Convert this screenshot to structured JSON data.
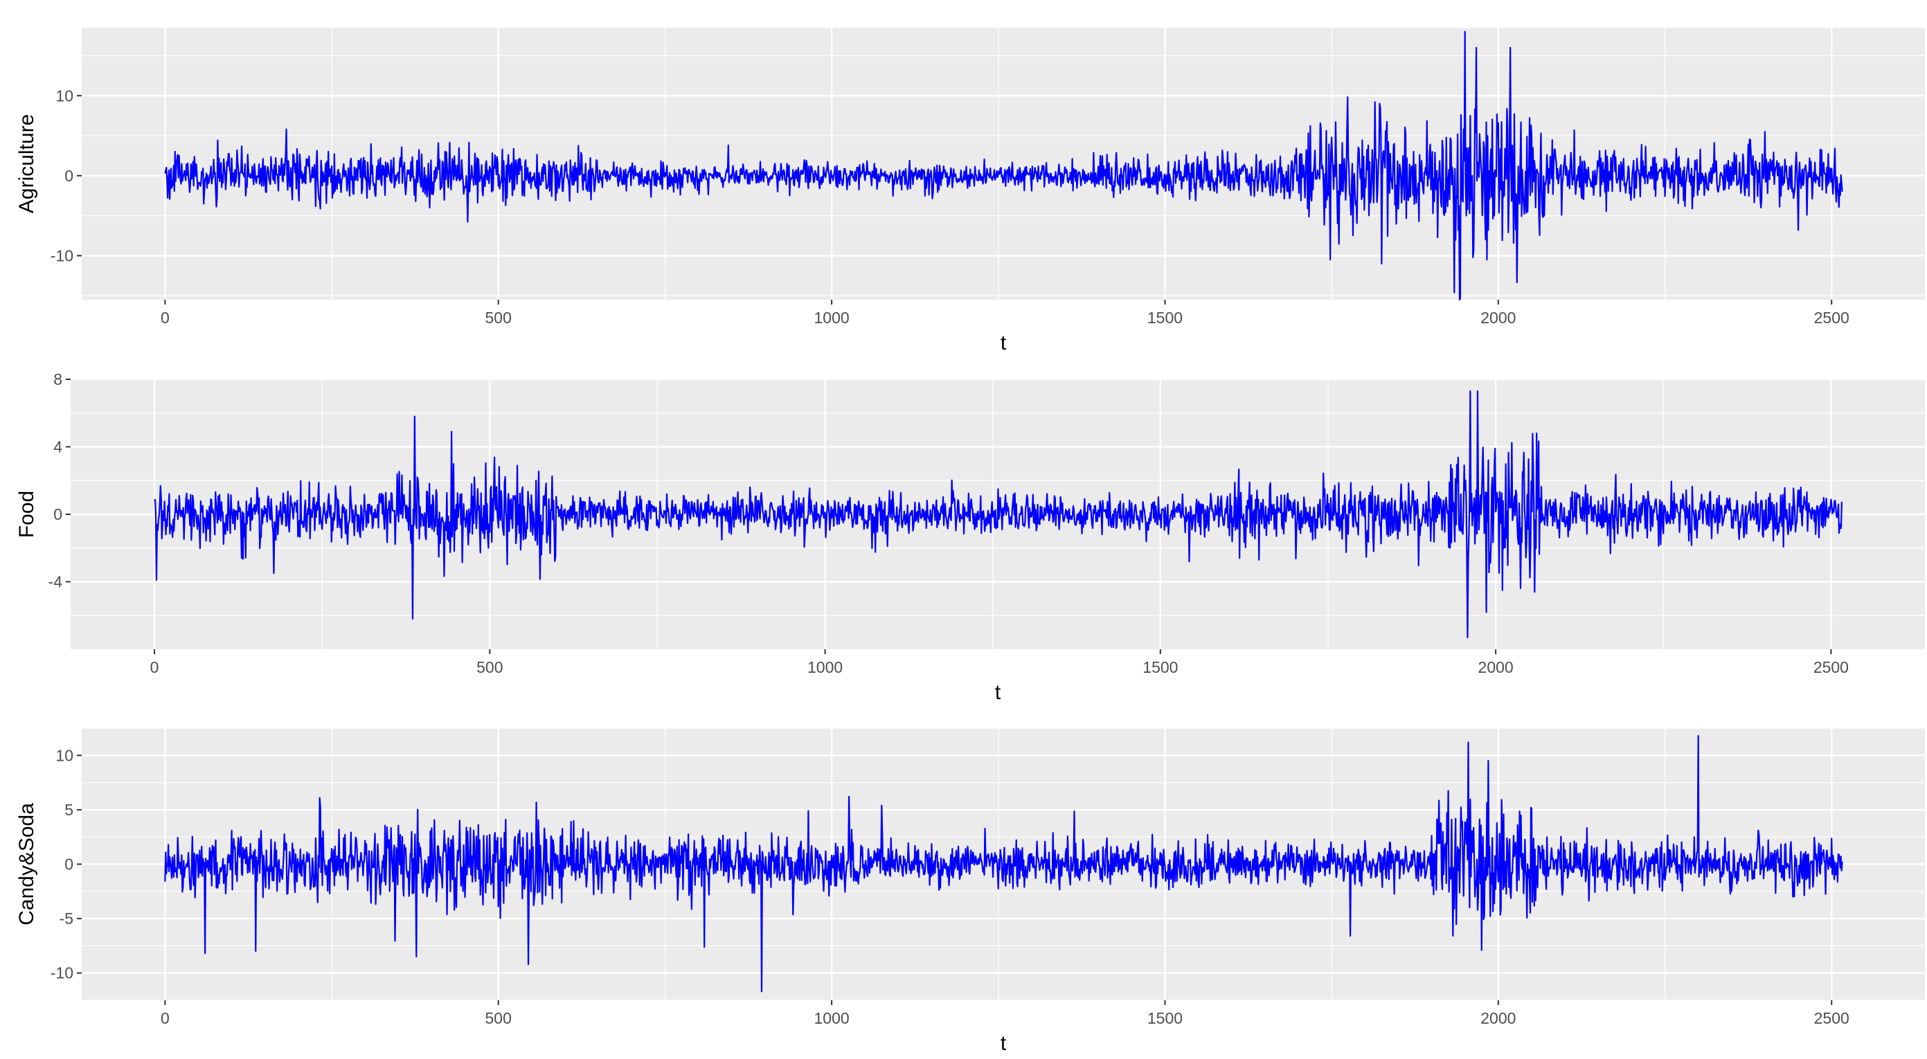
{
  "chart_data": [
    {
      "type": "line",
      "xlabel": "t",
      "ylabel": "Agriculture",
      "x_range": [
        -125,
        2640
      ],
      "ylim": [
        -15.5,
        18.5
      ],
      "x_ticks": [
        0,
        500,
        1000,
        1500,
        2000,
        2500
      ],
      "y_ticks": [
        -10,
        0,
        10
      ],
      "grid": true,
      "color": "#0000ff",
      "n_points": 2517,
      "segments": [
        {
          "start": 0,
          "end": 170,
          "amp": 1.3
        },
        {
          "start": 170,
          "end": 650,
          "amp": 1.5
        },
        {
          "start": 650,
          "end": 1400,
          "amp": 0.8
        },
        {
          "start": 1400,
          "end": 1700,
          "amp": 1.4
        },
        {
          "start": 1700,
          "end": 1930,
          "amp": 3.0
        },
        {
          "start": 1930,
          "end": 2070,
          "amp": 4.5
        },
        {
          "start": 2070,
          "end": 2517,
          "amp": 1.6
        }
      ],
      "spikes": [
        {
          "t": 182,
          "v": 5.8
        },
        {
          "t": 1748,
          "v": -10.5
        },
        {
          "t": 1815,
          "v": 9.2
        },
        {
          "t": 1825,
          "v": -11.0
        },
        {
          "t": 1950,
          "v": 18.0
        },
        {
          "t": 1943,
          "v": -15.3
        },
        {
          "t": 1967,
          "v": 16.0
        },
        {
          "t": 1983,
          "v": -10.5
        },
        {
          "t": 2018,
          "v": 16.0
        },
        {
          "t": 2450,
          "v": -6.8
        },
        {
          "t": 2400,
          "v": 5.5
        }
      ]
    },
    {
      "type": "line",
      "xlabel": "t",
      "ylabel": "Food",
      "x_range": [
        -125,
        2640
      ],
      "ylim": [
        -8,
        8
      ],
      "x_ticks": [
        0,
        500,
        1000,
        1500,
        2000,
        2500
      ],
      "y_ticks": [
        -4,
        0,
        4,
        8
      ],
      "grid": true,
      "color": "#0000ff",
      "n_points": 2517,
      "segments": [
        {
          "start": 0,
          "end": 360,
          "amp": 0.8
        },
        {
          "start": 360,
          "end": 600,
          "amp": 1.2
        },
        {
          "start": 600,
          "end": 1600,
          "amp": 0.55
        },
        {
          "start": 1600,
          "end": 1930,
          "amp": 0.85
        },
        {
          "start": 1930,
          "end": 2070,
          "amp": 1.9
        },
        {
          "start": 2070,
          "end": 2517,
          "amp": 0.7
        }
      ],
      "spikes": [
        {
          "t": 3,
          "v": -3.9
        },
        {
          "t": 178,
          "v": -3.5
        },
        {
          "t": 388,
          "v": 5.8
        },
        {
          "t": 385,
          "v": -6.2
        },
        {
          "t": 443,
          "v": 4.9
        },
        {
          "t": 1543,
          "v": -2.8
        },
        {
          "t": 1962,
          "v": 7.3
        },
        {
          "t": 1958,
          "v": -7.3
        },
        {
          "t": 1973,
          "v": 7.3
        },
        {
          "t": 1986,
          "v": -5.8
        },
        {
          "t": 2061,
          "v": 4.8
        },
        {
          "t": 2010,
          "v": -4.5
        }
      ]
    },
    {
      "type": "line",
      "xlabel": "t",
      "ylabel": "Candy&Soda",
      "x_range": [
        -125,
        2640
      ],
      "ylim": [
        -12.5,
        12.5
      ],
      "x_ticks": [
        0,
        500,
        1000,
        1500,
        2000,
        2500
      ],
      "y_ticks": [
        -10,
        -5,
        0,
        5,
        10
      ],
      "grid": true,
      "color": "#0000ff",
      "n_points": 2517,
      "segments": [
        {
          "start": 0,
          "end": 330,
          "amp": 1.4
        },
        {
          "start": 330,
          "end": 600,
          "amp": 2.0
        },
        {
          "start": 600,
          "end": 1100,
          "amp": 1.2
        },
        {
          "start": 1100,
          "end": 1900,
          "amp": 1.0
        },
        {
          "start": 1900,
          "end": 2060,
          "amp": 2.8
        },
        {
          "start": 2060,
          "end": 2517,
          "amp": 1.1
        }
      ],
      "spikes": [
        {
          "t": 60,
          "v": -8.2
        },
        {
          "t": 136,
          "v": -8.0
        },
        {
          "t": 232,
          "v": 6.1
        },
        {
          "t": 377,
          "v": -8.5
        },
        {
          "t": 545,
          "v": -9.2
        },
        {
          "t": 895,
          "v": -11.7
        },
        {
          "t": 965,
          "v": 4.9
        },
        {
          "t": 1075,
          "v": 5.4
        },
        {
          "t": 1955,
          "v": 11.2
        },
        {
          "t": 1985,
          "v": 9.5
        },
        {
          "t": 1975,
          "v": -7.9
        },
        {
          "t": 2300,
          "v": 11.8
        },
        {
          "t": 1778,
          "v": -6.6
        }
      ]
    }
  ]
}
